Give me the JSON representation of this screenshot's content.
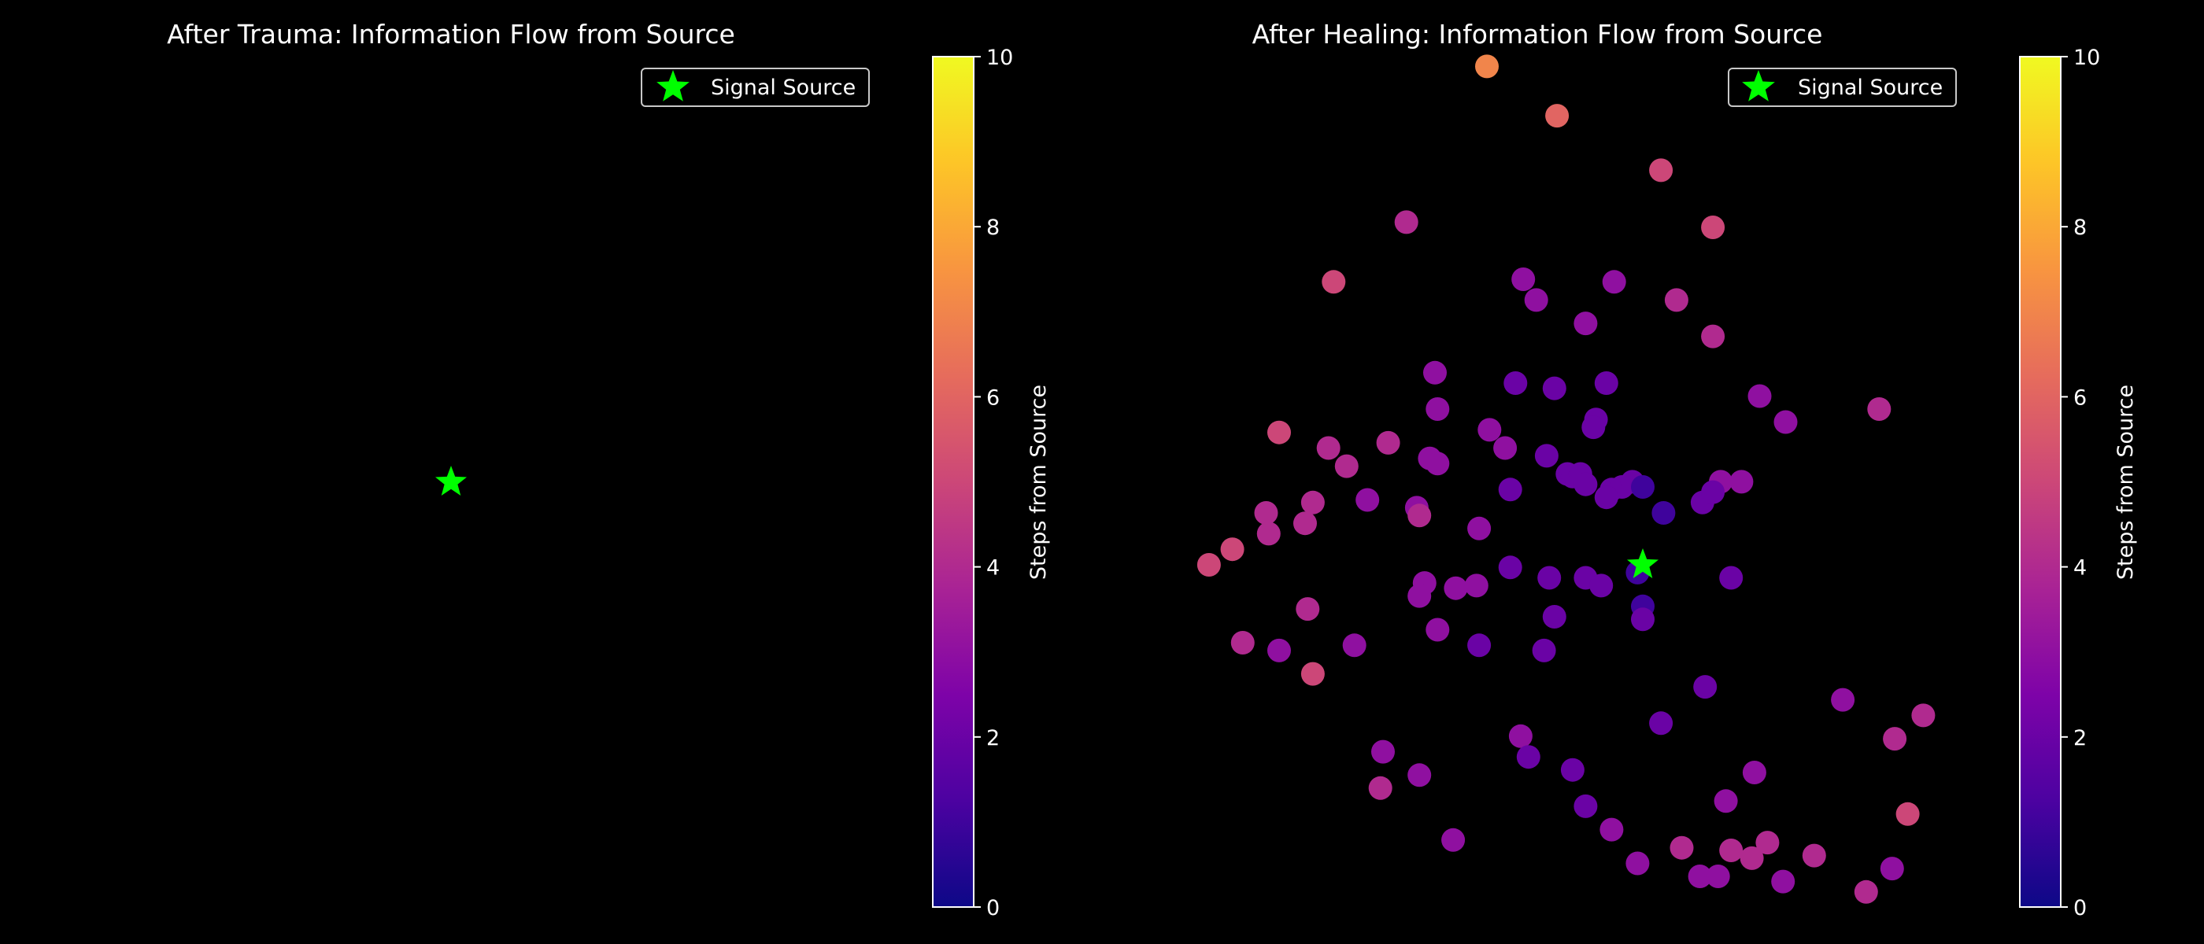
{
  "colors": {
    "background": "#000000",
    "star": "#00ff00",
    "text": "#ffffff",
    "frame": "#ffffff"
  },
  "colormap": "plasma",
  "chart_data": [
    {
      "type": "scatter",
      "title": "After Trauma: Information Flow from Source",
      "legend": {
        "label": "Signal Source",
        "placement": "top-right"
      },
      "axes_visible": false,
      "source": {
        "x": 0.0,
        "y": 0.0
      },
      "points": [],
      "colorbar": {
        "label": "Steps from Source",
        "range": [
          0,
          10
        ],
        "ticks": [
          "0",
          "2",
          "4",
          "6",
          "8",
          "10"
        ]
      }
    },
    {
      "type": "scatter",
      "title": "After Healing: Information Flow from Source",
      "legend": {
        "label": "Signal Source",
        "placement": "top-right"
      },
      "axes_visible": false,
      "source": {
        "x": 0.0,
        "y": 0.0
      },
      "points": [
        {
          "x": -0.6,
          "y": 1.92,
          "steps": 7
        },
        {
          "x": -0.33,
          "y": 1.73,
          "steps": 6
        },
        {
          "x": 0.07,
          "y": 1.52,
          "steps": 5
        },
        {
          "x": 0.27,
          "y": 1.3,
          "steps": 5
        },
        {
          "x": -0.91,
          "y": 1.32,
          "steps": 4
        },
        {
          "x": -1.19,
          "y": 1.09,
          "steps": 5
        },
        {
          "x": -0.46,
          "y": 1.1,
          "steps": 3
        },
        {
          "x": -0.41,
          "y": 1.02,
          "steps": 3
        },
        {
          "x": -0.11,
          "y": 1.09,
          "steps": 3
        },
        {
          "x": 0.13,
          "y": 1.02,
          "steps": 4
        },
        {
          "x": -0.22,
          "y": 0.93,
          "steps": 3
        },
        {
          "x": 0.27,
          "y": 0.88,
          "steps": 4
        },
        {
          "x": -0.8,
          "y": 0.74,
          "steps": 3
        },
        {
          "x": -0.49,
          "y": 0.7,
          "steps": 2
        },
        {
          "x": -0.34,
          "y": 0.68,
          "steps": 2
        },
        {
          "x": -0.14,
          "y": 0.7,
          "steps": 2
        },
        {
          "x": -0.79,
          "y": 0.6,
          "steps": 3
        },
        {
          "x": 0.45,
          "y": 0.65,
          "steps": 3
        },
        {
          "x": -0.18,
          "y": 0.56,
          "steps": 2
        },
        {
          "x": -0.19,
          "y": 0.53,
          "steps": 2
        },
        {
          "x": 0.55,
          "y": 0.55,
          "steps": 3
        },
        {
          "x": -1.4,
          "y": 0.51,
          "steps": 5
        },
        {
          "x": -0.59,
          "y": 0.52,
          "steps": 3
        },
        {
          "x": -1.21,
          "y": 0.45,
          "steps": 4
        },
        {
          "x": -0.98,
          "y": 0.47,
          "steps": 4
        },
        {
          "x": -0.82,
          "y": 0.41,
          "steps": 3
        },
        {
          "x": -0.79,
          "y": 0.39,
          "steps": 3
        },
        {
          "x": -0.53,
          "y": 0.45,
          "steps": 3
        },
        {
          "x": -0.37,
          "y": 0.42,
          "steps": 2
        },
        {
          "x": 0.91,
          "y": 0.6,
          "steps": 4
        },
        {
          "x": -1.14,
          "y": 0.38,
          "steps": 4
        },
        {
          "x": -0.51,
          "y": 0.29,
          "steps": 2
        },
        {
          "x": -0.29,
          "y": 0.35,
          "steps": 2
        },
        {
          "x": -0.27,
          "y": 0.34,
          "steps": 2
        },
        {
          "x": -0.24,
          "y": 0.35,
          "steps": 2
        },
        {
          "x": -0.12,
          "y": 0.29,
          "steps": 2
        },
        {
          "x": -0.08,
          "y": 0.3,
          "steps": 2
        },
        {
          "x": -0.22,
          "y": 0.31,
          "steps": 2
        },
        {
          "x": -0.04,
          "y": 0.32,
          "steps": 2
        },
        {
          "x": 0.0,
          "y": 0.3,
          "steps": 1
        },
        {
          "x": 0.3,
          "y": 0.32,
          "steps": 3
        },
        {
          "x": -1.27,
          "y": 0.24,
          "steps": 4
        },
        {
          "x": -1.45,
          "y": 0.2,
          "steps": 4
        },
        {
          "x": -1.06,
          "y": 0.25,
          "steps": 3
        },
        {
          "x": -0.87,
          "y": 0.22,
          "steps": 3
        },
        {
          "x": 0.08,
          "y": 0.2,
          "steps": 1
        },
        {
          "x": 0.23,
          "y": 0.24,
          "steps": 2
        },
        {
          "x": -0.14,
          "y": 0.26,
          "steps": 2
        },
        {
          "x": 0.27,
          "y": 0.28,
          "steps": 2
        },
        {
          "x": -0.86,
          "y": 0.19,
          "steps": 4
        },
        {
          "x": -0.63,
          "y": 0.14,
          "steps": 3
        },
        {
          "x": -1.3,
          "y": 0.16,
          "steps": 4
        },
        {
          "x": -1.58,
          "y": 0.06,
          "steps": 5
        },
        {
          "x": -1.44,
          "y": 0.12,
          "steps": 4
        },
        {
          "x": -1.67,
          "y": 0.0,
          "steps": 5
        },
        {
          "x": -0.84,
          "y": -0.07,
          "steps": 3
        },
        {
          "x": -0.72,
          "y": -0.09,
          "steps": 3
        },
        {
          "x": -0.64,
          "y": -0.08,
          "steps": 3
        },
        {
          "x": -0.51,
          "y": -0.01,
          "steps": 2
        },
        {
          "x": -0.36,
          "y": -0.05,
          "steps": 2
        },
        {
          "x": -0.22,
          "y": -0.05,
          "steps": 2
        },
        {
          "x": -0.16,
          "y": -0.08,
          "steps": 2
        },
        {
          "x": -0.02,
          "y": -0.03,
          "steps": 1
        },
        {
          "x": 0.38,
          "y": 0.32,
          "steps": 3
        },
        {
          "x": 0.34,
          "y": -0.05,
          "steps": 2
        },
        {
          "x": -0.86,
          "y": -0.12,
          "steps": 3
        },
        {
          "x": -1.29,
          "y": -0.17,
          "steps": 4
        },
        {
          "x": -1.54,
          "y": -0.3,
          "steps": 4
        },
        {
          "x": -0.34,
          "y": -0.2,
          "steps": 2
        },
        {
          "x": -0.79,
          "y": -0.25,
          "steps": 3
        },
        {
          "x": 0.0,
          "y": -0.16,
          "steps": 1
        },
        {
          "x": 0.0,
          "y": -0.21,
          "steps": 2
        },
        {
          "x": -1.27,
          "y": -0.42,
          "steps": 5
        },
        {
          "x": -1.4,
          "y": -0.33,
          "steps": 3
        },
        {
          "x": -1.11,
          "y": -0.31,
          "steps": 3
        },
        {
          "x": -0.63,
          "y": -0.31,
          "steps": 2
        },
        {
          "x": -0.38,
          "y": -0.33,
          "steps": 2
        },
        {
          "x": 0.24,
          "y": -0.47,
          "steps": 2
        },
        {
          "x": 0.77,
          "y": -0.52,
          "steps": 3
        },
        {
          "x": 0.97,
          "y": -0.67,
          "steps": 4
        },
        {
          "x": 1.08,
          "y": -0.58,
          "steps": 4
        },
        {
          "x": -0.27,
          "y": -0.79,
          "steps": 2
        },
        {
          "x": -0.47,
          "y": -0.66,
          "steps": 3
        },
        {
          "x": -0.44,
          "y": -0.74,
          "steps": 2
        },
        {
          "x": 0.07,
          "y": -0.61,
          "steps": 2
        },
        {
          "x": -1.0,
          "y": -0.72,
          "steps": 3
        },
        {
          "x": -0.86,
          "y": -0.81,
          "steps": 3
        },
        {
          "x": 0.43,
          "y": -0.8,
          "steps": 3
        },
        {
          "x": -1.01,
          "y": -0.86,
          "steps": 4
        },
        {
          "x": -0.22,
          "y": -0.93,
          "steps": 2
        },
        {
          "x": 0.32,
          "y": -0.91,
          "steps": 3
        },
        {
          "x": 1.02,
          "y": -0.96,
          "steps": 5
        },
        {
          "x": -0.73,
          "y": -1.06,
          "steps": 3
        },
        {
          "x": -0.12,
          "y": -1.02,
          "steps": 3
        },
        {
          "x": 0.15,
          "y": -1.09,
          "steps": 4
        },
        {
          "x": 0.34,
          "y": -1.1,
          "steps": 4
        },
        {
          "x": 0.42,
          "y": -1.13,
          "steps": 4
        },
        {
          "x": 0.48,
          "y": -1.07,
          "steps": 4
        },
        {
          "x": 0.66,
          "y": -1.12,
          "steps": 4
        },
        {
          "x": 0.22,
          "y": -1.2,
          "steps": 3
        },
        {
          "x": 0.29,
          "y": -1.2,
          "steps": 3
        },
        {
          "x": -0.02,
          "y": -1.15,
          "steps": 3
        },
        {
          "x": 0.54,
          "y": -1.22,
          "steps": 3
        },
        {
          "x": 0.86,
          "y": -1.26,
          "steps": 4
        },
        {
          "x": 0.96,
          "y": -1.17,
          "steps": 3
        }
      ],
      "colorbar": {
        "label": "Steps from Source",
        "range": [
          0,
          10
        ],
        "ticks": [
          "0",
          "2",
          "4",
          "6",
          "8",
          "10"
        ]
      }
    }
  ]
}
